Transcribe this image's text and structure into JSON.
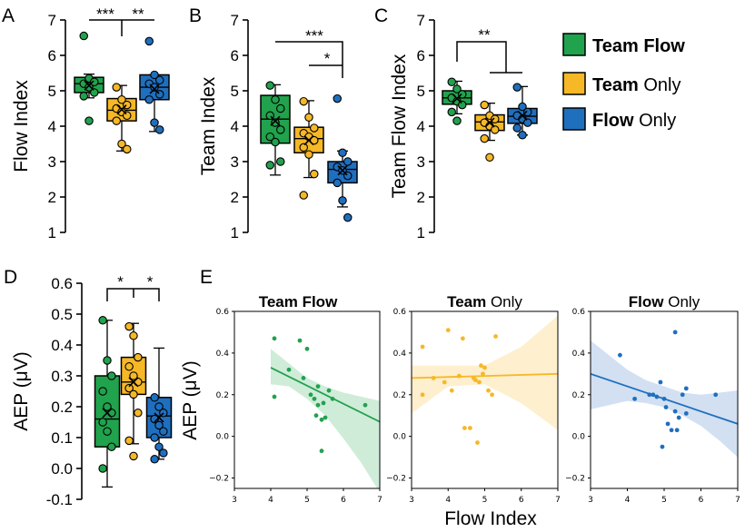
{
  "colors": {
    "team_flow": "#21a24d",
    "team_only": "#f6b826",
    "flow_only": "#1f6fbf",
    "team_flow_fill": "#bfe6cc",
    "team_only_fill": "#fde9bd",
    "flow_only_fill": "#c3d6ee"
  },
  "legend": [
    {
      "bold": "Team Flow",
      "rest": "",
      "color": "team_flow"
    },
    {
      "bold": "Team",
      "rest": " Only",
      "color": "team_only"
    },
    {
      "bold": "Flow",
      "rest": " Only",
      "color": "flow_only"
    }
  ],
  "chart_data": [
    {
      "panel": "A",
      "type": "box",
      "ylabel": "Flow Index",
      "ylim": [
        1,
        7
      ],
      "yticks": [
        "1",
        "2",
        "3",
        "4",
        "5",
        "6",
        "7"
      ],
      "groups": [
        {
          "name": "Team Flow",
          "color": "team_flow",
          "q1": 4.95,
          "median": 5.2,
          "q3": 5.38,
          "mean": 5.15,
          "whisker": [
            4.8,
            5.47
          ],
          "points": [
            6.55,
            5.35,
            5.25,
            5.2,
            5.1,
            4.95,
            4.85,
            4.15
          ]
        },
        {
          "name": "Team Only",
          "color": "team_only",
          "q1": 4.15,
          "median": 4.45,
          "q3": 4.78,
          "mean": 4.47,
          "whisker": [
            3.3,
            5.15
          ],
          "points": [
            5.1,
            4.75,
            4.6,
            4.5,
            4.4,
            4.3,
            4.15,
            3.5,
            3.35
          ]
        },
        {
          "name": "Flow Only",
          "color": "flow_only",
          "q1": 4.75,
          "median": 5.1,
          "q3": 5.45,
          "mean": 5.05,
          "whisker": [
            3.85,
            5.45
          ],
          "points": [
            6.4,
            5.45,
            5.3,
            5.2,
            5.1,
            4.9,
            4.75,
            4.1,
            3.9
          ]
        }
      ],
      "significance": [
        {
          "label": "***",
          "from": 0,
          "to": 1
        },
        {
          "label": "**",
          "from": 1,
          "to": 2
        }
      ]
    },
    {
      "panel": "B",
      "type": "box",
      "ylabel": "Team Index",
      "ylim": [
        1,
        7
      ],
      "yticks": [
        "1",
        "2",
        "3",
        "4",
        "5",
        "6",
        "7"
      ],
      "groups": [
        {
          "name": "Team Flow",
          "color": "team_flow",
          "q1": 3.52,
          "median": 4.2,
          "q3": 4.87,
          "mean": 4.15,
          "whisker": [
            2.62,
            5.17
          ],
          "points": [
            5.15,
            4.75,
            4.5,
            4.3,
            4.1,
            3.9,
            3.7,
            3.55,
            3.0,
            2.9
          ]
        },
        {
          "name": "Team Only",
          "color": "team_only",
          "q1": 3.25,
          "median": 3.65,
          "q3": 3.97,
          "mean": 3.6,
          "whisker": [
            2.55,
            4.72
          ],
          "points": [
            4.7,
            4.25,
            3.95,
            3.8,
            3.7,
            3.6,
            3.4,
            3.2,
            2.65,
            2.05
          ]
        },
        {
          "name": "Flow Only",
          "color": "flow_only",
          "q1": 2.4,
          "median": 2.78,
          "q3": 3.0,
          "mean": 2.75,
          "whisker": [
            1.72,
            3.3
          ],
          "points": [
            4.78,
            3.25,
            3.0,
            2.85,
            2.75,
            2.6,
            2.4,
            1.9,
            1.42
          ]
        }
      ],
      "significance": [
        {
          "label": "***",
          "from": 0,
          "to": 2
        },
        {
          "label": "*",
          "from": 1,
          "to": 2
        }
      ]
    },
    {
      "panel": "C",
      "type": "box",
      "ylabel": "Team Flow Index",
      "ylim": [
        1,
        7
      ],
      "yticks": [
        "1",
        "2",
        "3",
        "4",
        "5",
        "6",
        "7"
      ],
      "groups": [
        {
          "name": "Team Flow",
          "color": "team_flow",
          "q1": 4.62,
          "median": 4.8,
          "q3": 5.0,
          "mean": 4.78,
          "whisker": [
            4.35,
            5.27
          ],
          "points": [
            5.25,
            5.05,
            4.9,
            4.8,
            4.7,
            4.6,
            4.4,
            4.15
          ]
        },
        {
          "name": "Team Only",
          "color": "team_only",
          "q1": 3.88,
          "median": 4.12,
          "q3": 4.32,
          "mean": 4.1,
          "whisker": [
            3.6,
            4.65
          ],
          "points": [
            4.6,
            4.3,
            4.2,
            4.1,
            4.0,
            3.9,
            3.65,
            3.12
          ]
        },
        {
          "name": "Flow Only",
          "color": "flow_only",
          "q1": 4.08,
          "median": 4.28,
          "q3": 4.5,
          "mean": 4.3,
          "whisker": [
            3.75,
            5.12
          ],
          "points": [
            5.1,
            4.55,
            4.4,
            4.3,
            4.2,
            4.1,
            3.95,
            3.75
          ]
        }
      ],
      "significance": [
        {
          "label": "**",
          "from": 0,
          "to": 1
        }
      ]
    },
    {
      "panel": "D",
      "type": "box",
      "ylabel": "AEP (μV)",
      "ylim": [
        -0.1,
        0.6
      ],
      "yticks": [
        "-0.1",
        "0.0",
        "0.1",
        "0.2",
        "0.3",
        "0.4",
        "0.5",
        "0.6"
      ],
      "groups": [
        {
          "name": "Team Flow",
          "color": "team_flow",
          "q1": 0.07,
          "median": 0.16,
          "q3": 0.3,
          "mean": 0.18,
          "whisker": [
            -0.06,
            0.48
          ],
          "points": [
            0.48,
            0.35,
            0.3,
            0.25,
            0.2,
            0.18,
            0.15,
            0.12,
            0.07,
            0.0
          ]
        },
        {
          "name": "Team Only",
          "color": "team_only",
          "q1": 0.24,
          "median": 0.28,
          "q3": 0.36,
          "mean": 0.28,
          "whisker": [
            0.08,
            0.47
          ],
          "points": [
            0.46,
            0.43,
            0.36,
            0.33,
            0.3,
            0.28,
            0.26,
            0.24,
            0.18,
            0.09,
            0.04
          ]
        },
        {
          "name": "Flow Only",
          "color": "flow_only",
          "q1": 0.1,
          "median": 0.17,
          "q3": 0.23,
          "mean": 0.165,
          "whisker": [
            0.03,
            0.39
          ],
          "points": [
            0.23,
            0.2,
            0.18,
            0.16,
            0.14,
            0.12,
            0.1,
            0.07,
            0.05,
            0.03
          ]
        }
      ],
      "significance": [
        {
          "label": "*",
          "from": 0,
          "to": 1
        },
        {
          "label": "*",
          "from": 1,
          "to": 2
        }
      ]
    }
  ],
  "scatter_data": {
    "panel": "E",
    "type": "scatter",
    "xlabel": "Flow Index",
    "ylabel": "AEP (μV)",
    "xlim": [
      3,
      7
    ],
    "ylim": [
      -0.25,
      0.6
    ],
    "xticks": [
      "3",
      "4",
      "5",
      "6",
      "7"
    ],
    "yticks": [
      "−0.2",
      "0.0",
      "0.2",
      "0.4",
      "0.6"
    ],
    "panels": [
      {
        "title_bold": "Team Flow",
        "title_rest": "",
        "color": "team_flow",
        "fill": "team_flow_fill",
        "fit": [
          [
            4.0,
            0.33
          ],
          [
            7.0,
            0.07
          ]
        ],
        "band_top": [
          [
            4.0,
            0.42
          ],
          [
            5.0,
            0.28
          ],
          [
            5.5,
            0.24
          ],
          [
            6.0,
            0.21
          ],
          [
            6.5,
            0.19
          ],
          [
            7.0,
            0.17
          ]
        ],
        "band_bottom": [
          [
            4.0,
            0.25
          ],
          [
            4.5,
            0.24
          ],
          [
            5.0,
            0.18
          ],
          [
            5.5,
            0.1
          ],
          [
            6.0,
            -0.01
          ],
          [
            6.5,
            -0.13
          ],
          [
            7.0,
            -0.27
          ]
        ],
        "points": [
          [
            4.1,
            0.47
          ],
          [
            4.1,
            0.19
          ],
          [
            4.5,
            0.32
          ],
          [
            4.8,
            0.46
          ],
          [
            5.0,
            0.42
          ],
          [
            4.9,
            0.28
          ],
          [
            5.1,
            0.2
          ],
          [
            5.2,
            0.18
          ],
          [
            5.3,
            0.15
          ],
          [
            5.25,
            0.1
          ],
          [
            5.4,
            0.08
          ],
          [
            5.5,
            0.09
          ],
          [
            5.45,
            0.16
          ],
          [
            5.6,
            0.22
          ],
          [
            5.7,
            0.18
          ],
          [
            6.6,
            0.15
          ],
          [
            5.4,
            -0.07
          ],
          [
            5.3,
            0.24
          ]
        ]
      },
      {
        "title_bold": "Team",
        "title_rest": " Only",
        "color": "team_only",
        "fill": "team_only_fill",
        "fit": [
          [
            3.0,
            0.28
          ],
          [
            7.0,
            0.3
          ]
        ],
        "band_top": [
          [
            3.0,
            0.34
          ],
          [
            4.0,
            0.34
          ],
          [
            5.0,
            0.34
          ],
          [
            6.0,
            0.43
          ],
          [
            7.0,
            0.58
          ]
        ],
        "band_bottom": [
          [
            3.0,
            0.11
          ],
          [
            4.0,
            0.24
          ],
          [
            5.0,
            0.25
          ],
          [
            6.0,
            0.16
          ],
          [
            7.0,
            0.03
          ]
        ],
        "points": [
          [
            3.3,
            0.43
          ],
          [
            3.3,
            0.2
          ],
          [
            3.6,
            0.28
          ],
          [
            3.9,
            0.26
          ],
          [
            4.0,
            0.51
          ],
          [
            4.1,
            0.22
          ],
          [
            4.3,
            0.29
          ],
          [
            4.4,
            0.47
          ],
          [
            4.45,
            0.04
          ],
          [
            4.6,
            0.04
          ],
          [
            4.7,
            0.28
          ],
          [
            4.75,
            0.27
          ],
          [
            4.85,
            0.26
          ],
          [
            4.9,
            0.34
          ],
          [
            4.95,
            0.3
          ],
          [
            5.0,
            0.33
          ],
          [
            5.1,
            0.22
          ],
          [
            5.2,
            0.2
          ],
          [
            5.3,
            0.48
          ],
          [
            4.8,
            -0.03
          ]
        ]
      },
      {
        "title_bold": "Flow",
        "title_rest": " Only",
        "color": "flow_only",
        "fill": "flow_only_fill",
        "fit": [
          [
            3.0,
            0.3
          ],
          [
            7.0,
            0.06
          ]
        ],
        "band_top": [
          [
            3.0,
            0.46
          ],
          [
            4.0,
            0.32
          ],
          [
            4.5,
            0.27
          ],
          [
            5.0,
            0.24
          ],
          [
            5.5,
            0.21
          ],
          [
            6.0,
            0.2
          ],
          [
            6.5,
            0.21
          ],
          [
            7.0,
            0.22
          ]
        ],
        "band_bottom": [
          [
            3.0,
            0.13
          ],
          [
            4.0,
            0.17
          ],
          [
            4.5,
            0.16
          ],
          [
            5.0,
            0.14
          ],
          [
            5.5,
            0.1
          ],
          [
            6.0,
            0.05
          ],
          [
            6.5,
            -0.02
          ],
          [
            7.0,
            -0.1
          ]
        ],
        "points": [
          [
            3.8,
            0.39
          ],
          [
            4.2,
            0.18
          ],
          [
            4.6,
            0.2
          ],
          [
            4.7,
            0.2
          ],
          [
            4.8,
            0.19
          ],
          [
            4.9,
            0.26
          ],
          [
            5.0,
            0.18
          ],
          [
            5.05,
            0.14
          ],
          [
            5.1,
            0.06
          ],
          [
            5.2,
            0.03
          ],
          [
            5.3,
            0.5
          ],
          [
            5.3,
            0.12
          ],
          [
            5.35,
            0.03
          ],
          [
            5.4,
            0.09
          ],
          [
            5.5,
            0.2
          ],
          [
            5.6,
            0.23
          ],
          [
            5.6,
            0.11
          ],
          [
            4.95,
            -0.05
          ],
          [
            6.4,
            0.2
          ]
        ]
      }
    ]
  }
}
